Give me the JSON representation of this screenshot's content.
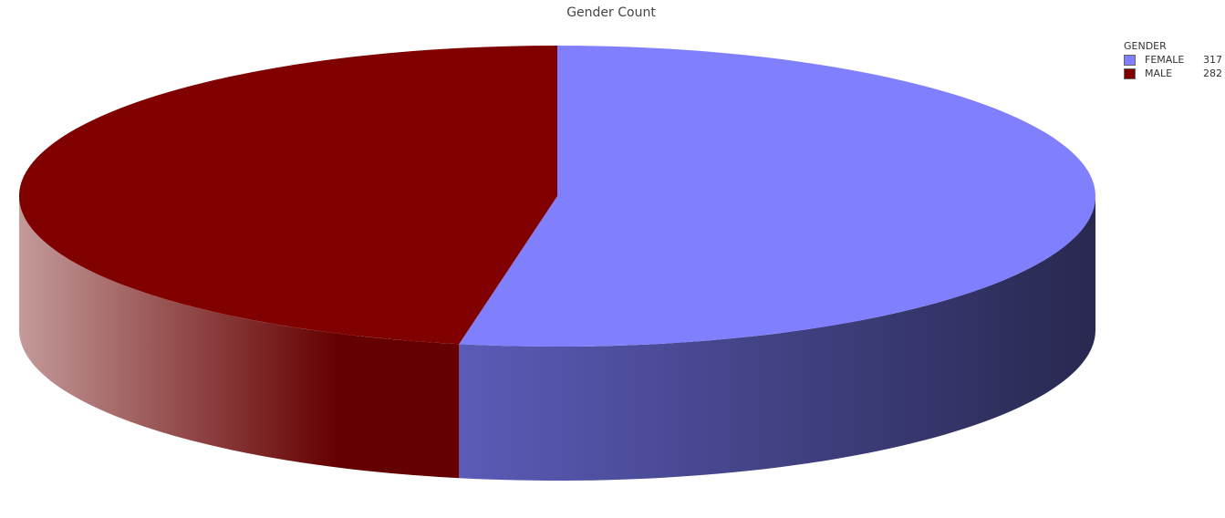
{
  "chart_data": {
    "type": "pie",
    "style": "3d",
    "title": "Gender Count",
    "legend": {
      "title": "GENDER",
      "placement": "top-right"
    },
    "categories": [
      "FEMALE",
      "MALE"
    ],
    "values": [
      317,
      282
    ],
    "colors": {
      "FEMALE": "#8080ff",
      "MALE": "#800000"
    }
  }
}
